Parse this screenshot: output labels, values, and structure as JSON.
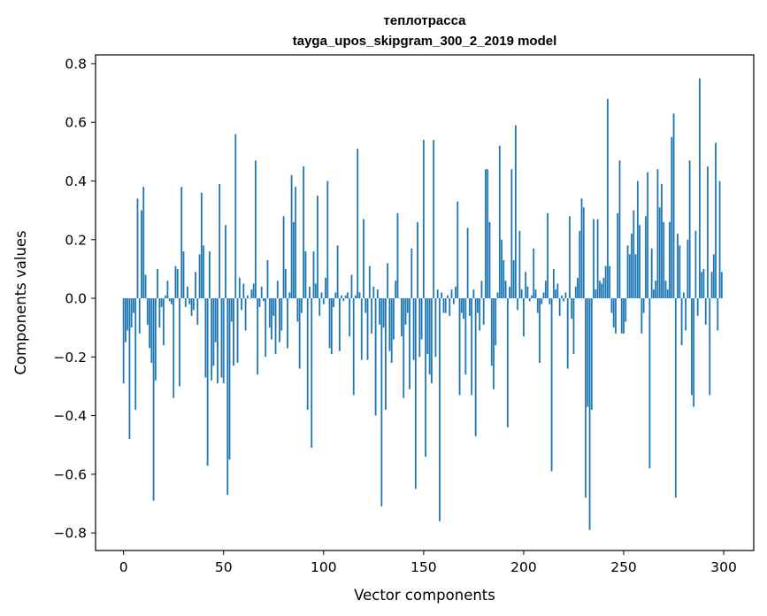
{
  "chart_data": {
    "type": "bar",
    "title": "теплотрасса",
    "subtitle": "tayga_upos_skipgram_300_2_2019 model",
    "xlabel": "Vector components",
    "ylabel": "Components values",
    "xlim": [
      -14,
      315
    ],
    "ylim": [
      -0.86,
      0.83
    ],
    "xticks": [
      0,
      50,
      100,
      150,
      200,
      250,
      300
    ],
    "xtick_labels": [
      "0",
      "50",
      "100",
      "150",
      "200",
      "250",
      "300"
    ],
    "yticks": [
      -0.8,
      -0.6,
      -0.4,
      -0.2,
      0.0,
      0.2,
      0.4,
      0.6,
      0.8
    ],
    "ytick_labels": [
      "−0.8",
      "−0.6",
      "−0.4",
      "−0.2",
      "0.0",
      "0.2",
      "0.4",
      "0.6",
      "0.8"
    ],
    "bar_color": "#1f77b4",
    "x": [
      0,
      1,
      2,
      3,
      4,
      5,
      6,
      7,
      8,
      9,
      10,
      11,
      12,
      13,
      14,
      15,
      16,
      17,
      18,
      19,
      20,
      21,
      22,
      23,
      24,
      25,
      26,
      27,
      28,
      29,
      30,
      31,
      32,
      33,
      34,
      35,
      36,
      37,
      38,
      39,
      40,
      41,
      42,
      43,
      44,
      45,
      46,
      47,
      48,
      49,
      50,
      51,
      52,
      53,
      54,
      55,
      56,
      57,
      58,
      59,
      60,
      61,
      62,
      63,
      64,
      65,
      66,
      67,
      68,
      69,
      70,
      71,
      72,
      73,
      74,
      75,
      76,
      77,
      78,
      79,
      80,
      81,
      82,
      83,
      84,
      85,
      86,
      87,
      88,
      89,
      90,
      91,
      92,
      93,
      94,
      95,
      96,
      97,
      98,
      99,
      100,
      101,
      102,
      103,
      104,
      105,
      106,
      107,
      108,
      109,
      110,
      111,
      112,
      113,
      114,
      115,
      116,
      117,
      118,
      119,
      120,
      121,
      122,
      123,
      124,
      125,
      126,
      127,
      128,
      129,
      130,
      131,
      132,
      133,
      134,
      135,
      136,
      137,
      138,
      139,
      140,
      141,
      142,
      143,
      144,
      145,
      146,
      147,
      148,
      149,
      150,
      151,
      152,
      153,
      154,
      155,
      156,
      157,
      158,
      159,
      160,
      161,
      162,
      163,
      164,
      165,
      166,
      167,
      168,
      169,
      170,
      171,
      172,
      173,
      174,
      175,
      176,
      177,
      178,
      179,
      180,
      181,
      182,
      183,
      184,
      185,
      186,
      187,
      188,
      189,
      190,
      191,
      192,
      193,
      194,
      195,
      196,
      197,
      198,
      199,
      200,
      201,
      202,
      203,
      204,
      205,
      206,
      207,
      208,
      209,
      210,
      211,
      212,
      213,
      214,
      215,
      216,
      217,
      218,
      219,
      220,
      221,
      222,
      223,
      224,
      225,
      226,
      227,
      228,
      229,
      230,
      231,
      232,
      233,
      234,
      235,
      236,
      237,
      238,
      239,
      240,
      241,
      242,
      243,
      244,
      245,
      246,
      247,
      248,
      249,
      250,
      251,
      252,
      253,
      254,
      255,
      256,
      257,
      258,
      259,
      260,
      261,
      262,
      263,
      264,
      265,
      266,
      267,
      268,
      269,
      270,
      271,
      272,
      273,
      274,
      275,
      276,
      277,
      278,
      279,
      280,
      281,
      282,
      283,
      284,
      285,
      286,
      287,
      288,
      289,
      290,
      291,
      292,
      293,
      294,
      295,
      296,
      297,
      298,
      299
    ],
    "values": [
      -0.29,
      -0.15,
      -0.11,
      -0.48,
      -0.1,
      -0.05,
      -0.38,
      0.34,
      -0.12,
      0.3,
      0.38,
      0.08,
      -0.09,
      -0.17,
      -0.22,
      -0.69,
      -0.28,
      0.1,
      -0.1,
      -0.03,
      -0.16,
      0.01,
      0.06,
      -0.01,
      -0.02,
      -0.34,
      0.11,
      0.1,
      -0.3,
      0.38,
      0.16,
      -0.03,
      0.04,
      -0.02,
      -0.06,
      -0.04,
      0.09,
      -0.09,
      0.15,
      0.36,
      0.18,
      -0.27,
      -0.57,
      0.16,
      -0.28,
      -0.23,
      -0.15,
      -0.29,
      0.39,
      -0.27,
      -0.29,
      0.25,
      -0.67,
      -0.55,
      -0.08,
      -0.23,
      0.56,
      -0.22,
      0.07,
      -0.04,
      0.05,
      -0.11,
      0.01,
      0.0,
      0.03,
      0.05,
      0.47,
      -0.26,
      -0.03,
      0.04,
      -0.01,
      -0.2,
      0.13,
      -0.1,
      -0.14,
      -0.06,
      -0.19,
      0.06,
      -0.15,
      -0.11,
      0.28,
      0.1,
      -0.17,
      0.02,
      0.42,
      0.26,
      0.38,
      -0.08,
      -0.24,
      -0.05,
      0.45,
      0.16,
      -0.38,
      0.04,
      -0.51,
      0.16,
      0.05,
      0.35,
      -0.06,
      0.02,
      -0.02,
      0.07,
      0.4,
      -0.17,
      -0.19,
      -0.03,
      0.02,
      0.18,
      -0.18,
      0.01,
      -0.01,
      0.01,
      0.02,
      -0.13,
      0.08,
      -0.33,
      0.01,
      0.51,
      0.02,
      -0.21,
      0.27,
      -0.05,
      -0.21,
      0.11,
      -0.12,
      0.04,
      -0.4,
      0.03,
      -0.09,
      -0.71,
      -0.1,
      -0.38,
      0.12,
      -0.18,
      -0.22,
      -0.14,
      0.06,
      0.29,
      0.0,
      -0.13,
      -0.34,
      -0.09,
      -0.05,
      -0.31,
      0.17,
      -0.21,
      -0.65,
      0.26,
      -0.2,
      -0.14,
      0.54,
      -0.54,
      -0.19,
      -0.26,
      -0.29,
      0.54,
      -0.2,
      0.03,
      -0.76,
      0.02,
      -0.05,
      -0.05,
      0.01,
      -0.06,
      0.03,
      -0.02,
      0.04,
      0.33,
      -0.33,
      -0.05,
      -0.07,
      -0.26,
      0.24,
      -0.06,
      -0.33,
      0.03,
      -0.47,
      -0.05,
      -0.11,
      0.06,
      -0.09,
      0.44,
      0.44,
      0.26,
      -0.23,
      -0.31,
      -0.16,
      0.02,
      0.52,
      0.2,
      0.13,
      0.06,
      -0.44,
      0.04,
      0.44,
      0.13,
      0.59,
      -0.04,
      0.23,
      0.03,
      -0.13,
      0.09,
      0.04,
      -0.01,
      0.01,
      0.17,
      0.03,
      -0.05,
      -0.22,
      -0.02,
      0.02,
      0.06,
      0.29,
      -0.02,
      -0.59,
      0.1,
      0.03,
      0.05,
      -0.06,
      0.01,
      -0.01,
      0.02,
      -0.24,
      0.28,
      -0.07,
      -0.19,
      0.04,
      0.07,
      0.23,
      0.34,
      0.31,
      -0.68,
      -0.37,
      -0.79,
      -0.38,
      0.27,
      0.03,
      0.27,
      0.06,
      0.05,
      0.07,
      0.11,
      0.68,
      0.11,
      -0.05,
      -0.1,
      -0.12,
      0.29,
      0.47,
      -0.12,
      -0.12,
      -0.08,
      0.18,
      0.15,
      0.22,
      0.3,
      0.15,
      0.4,
      0.25,
      -0.12,
      -0.05,
      0.28,
      0.43,
      -0.58,
      0.17,
      0.03,
      0.06,
      0.44,
      0.31,
      0.39,
      0.26,
      0.06,
      0.03,
      0.26,
      0.55,
      0.63,
      -0.68,
      0.22,
      0.18,
      -0.16,
      0.02,
      -0.11,
      0.2,
      0.47,
      -0.33,
      -0.37,
      0.23,
      -0.06,
      0.75,
      0.09,
      0.1,
      -0.09,
      0.45,
      -0.33,
      0.09,
      0.15,
      0.53,
      -0.11,
      0.4,
      0.09
    ]
  }
}
